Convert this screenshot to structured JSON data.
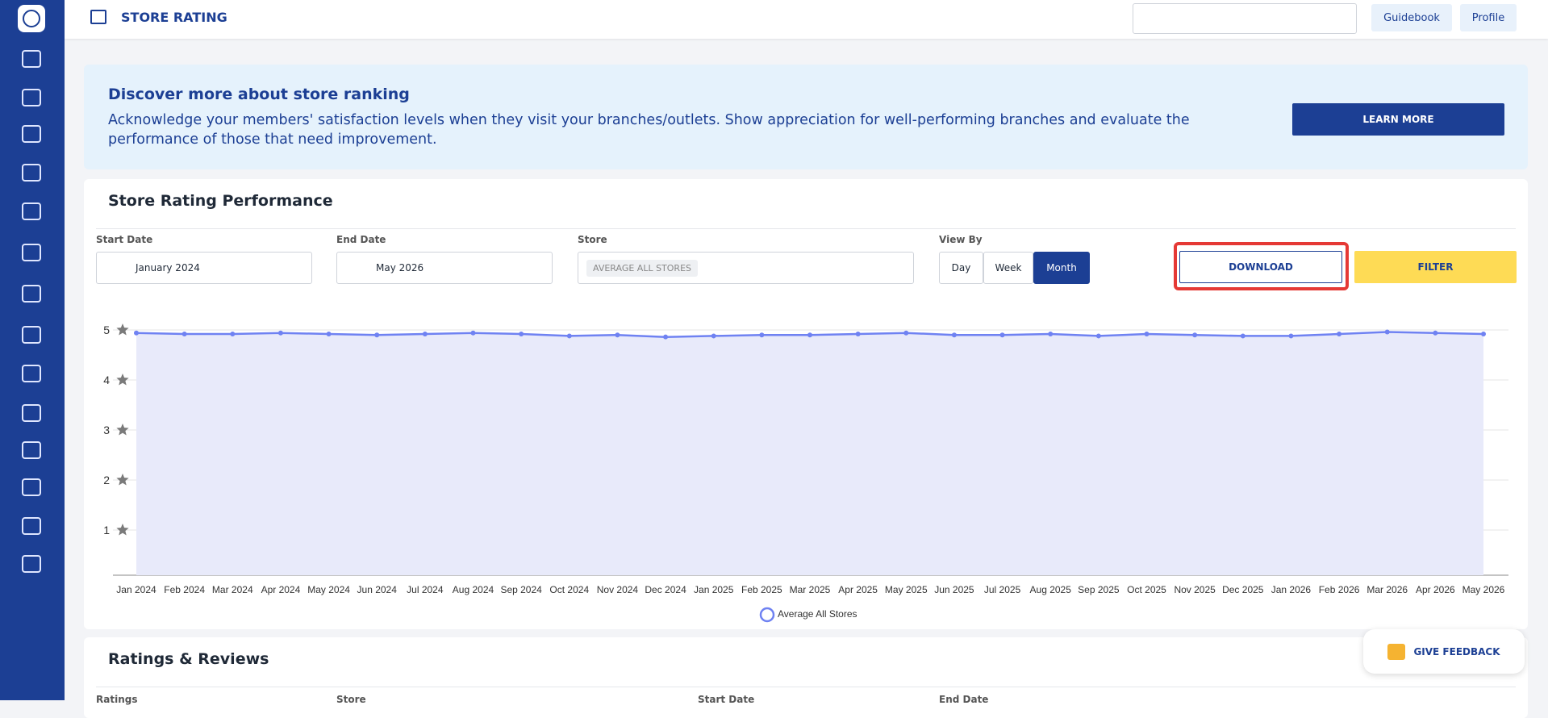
{
  "header": {
    "title": "STORE RATING",
    "guidebook": "Guidebook",
    "profile": "Profile"
  },
  "banner": {
    "title": "Discover more about store ranking",
    "text": "Acknowledge your members' satisfaction levels when they visit your branches/outlets. Show appreciation for well-performing branches and evaluate the performance of those that need improvement.",
    "button": "LEARN MORE"
  },
  "performance": {
    "title": "Store Rating Performance",
    "start_label": "Start Date",
    "start_value": "January 2024",
    "end_label": "End Date",
    "end_value": "May 2026",
    "store_label": "Store",
    "store_value": "AVERAGE ALL STORES",
    "view_label": "View By",
    "view_options": [
      "Day",
      "Week",
      "Month"
    ],
    "download": "DOWNLOAD",
    "filter": "FILTER"
  },
  "chart_data": {
    "type": "area",
    "categories": [
      "Jan 2024",
      "Feb 2024",
      "Mar 2024",
      "Apr 2024",
      "May 2024",
      "Jun 2024",
      "Jul 2024",
      "Aug 2024",
      "Sep 2024",
      "Oct 2024",
      "Nov 2024",
      "Dec 2024",
      "Jan 2025",
      "Feb 2025",
      "Mar 2025",
      "Apr 2025",
      "May 2025",
      "Jun 2025",
      "Jul 2025",
      "Aug 2025",
      "Sep 2025",
      "Oct 2025",
      "Nov 2025",
      "Dec 2025",
      "Jan 2026",
      "Feb 2026",
      "Mar 2026",
      "Apr 2026",
      "May 2026"
    ],
    "series": [
      {
        "name": "Average All Stores",
        "color": "#6f82f2",
        "values": [
          4.94,
          4.92,
          4.92,
          4.94,
          4.92,
          4.9,
          4.92,
          4.94,
          4.92,
          4.88,
          4.9,
          4.86,
          4.88,
          4.9,
          4.9,
          4.92,
          4.94,
          4.9,
          4.9,
          4.92,
          4.88,
          4.92,
          4.9,
          4.88,
          4.88,
          4.92,
          4.96,
          4.94,
          4.92
        ]
      }
    ],
    "ylim": [
      0,
      5.5
    ],
    "yticks": [
      1,
      2,
      3,
      4,
      5
    ],
    "grid": true
  },
  "reviews": {
    "title": "Ratings & Reviews",
    "columns": [
      "Ratings",
      "Store",
      "Start Date",
      "End Date"
    ]
  },
  "feedback": "GIVE FEEDBACK"
}
